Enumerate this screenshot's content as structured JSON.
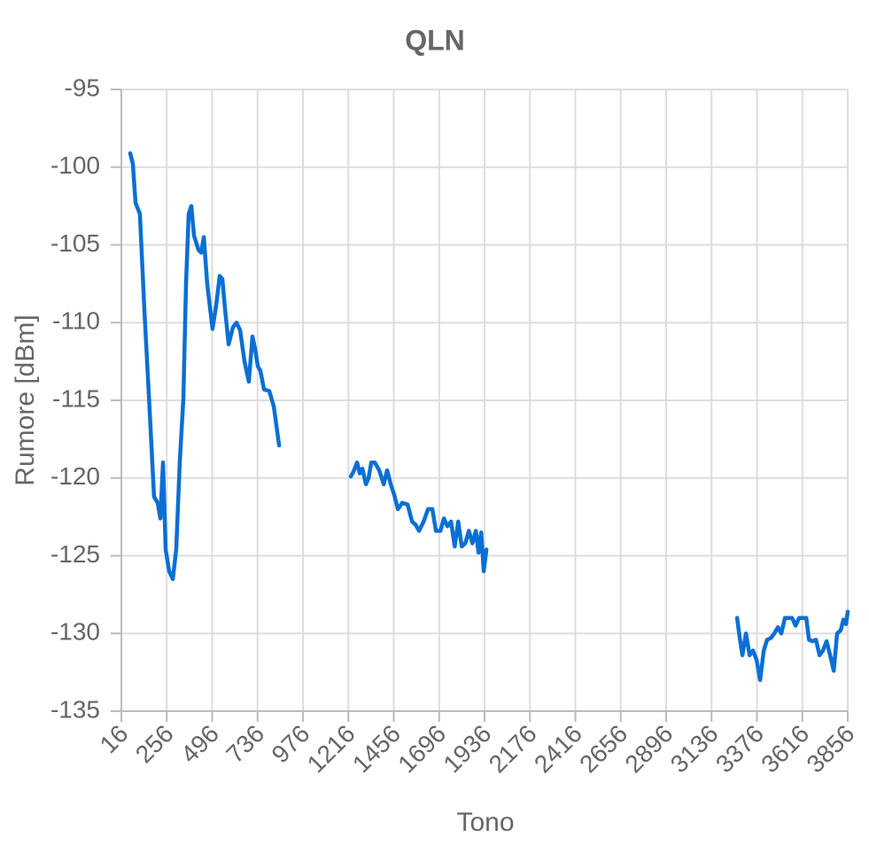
{
  "chart_data": {
    "type": "line",
    "title": "QLN",
    "x_label": "Tono",
    "y_label": "Rumore [dBm]",
    "xlim": [
      16,
      3856
    ],
    "xticks": [
      16,
      256,
      496,
      736,
      976,
      1216,
      1456,
      1696,
      1936,
      2176,
      2416,
      2656,
      2896,
      3136,
      3376,
      3616,
      3856
    ],
    "ylim": [
      -135,
      -95
    ],
    "yticks": [
      -95,
      -100,
      -105,
      -110,
      -115,
      -120,
      -125,
      -130,
      -135
    ],
    "grid": true,
    "color": "#0a6fd4",
    "x": [
      63,
      77,
      91,
      114,
      138,
      161,
      189,
      208,
      222,
      236,
      250,
      269,
      288,
      306,
      325,
      344,
      358,
      372,
      386,
      400,
      423,
      438,
      452,
      470,
      498,
      517,
      536,
      550,
      564,
      583,
      606,
      625,
      644,
      667,
      690,
      709,
      723,
      737,
      751,
      770,
      798,
      822,
      850,
      1040,
      1229,
      1243,
      1262,
      1276,
      1290,
      1309,
      1323,
      1337,
      1356,
      1379,
      1403,
      1421,
      1440,
      1459,
      1478,
      1501,
      1529,
      1553,
      1571,
      1590,
      1614,
      1637,
      1660,
      1679,
      1703,
      1721,
      1740,
      1759,
      1778,
      1797,
      1815,
      1834,
      1853,
      1872,
      1890,
      1904,
      1918,
      1932,
      1946,
      2600,
      3271,
      3285,
      3299,
      3318,
      3337,
      3355,
      3374,
      3393,
      3412,
      3430,
      3449,
      3468,
      3487,
      3505,
      3524,
      3543,
      3562,
      3580,
      3599,
      3618,
      3637,
      3651,
      3669,
      3688,
      3707,
      3725,
      3744,
      3763,
      3782,
      3800,
      3819,
      3833,
      3847,
      3856
    ],
    "values": [
      -99.1,
      -99.8,
      -102.3,
      -103,
      -109.3,
      -114.6,
      -121.2,
      -121.6,
      -122.6,
      -119,
      -124.6,
      -126,
      -126.5,
      -124.6,
      -118.9,
      -114.9,
      -107.5,
      -103,
      -102.5,
      -104.4,
      -105.3,
      -105.5,
      -104.5,
      -107.5,
      -110.4,
      -108.9,
      -107,
      -107.2,
      -109.1,
      -111.4,
      -110.3,
      -110,
      -110.5,
      -112.5,
      -113.8,
      -110.9,
      -111.7,
      -112.8,
      -113.1,
      -114.3,
      -114.4,
      -115.4,
      -117.9,
      null,
      -119.9,
      -119.6,
      -119,
      -119.7,
      -119.4,
      -120.4,
      -120,
      -119,
      -119,
      -119.5,
      -120.4,
      -119.5,
      -120.4,
      -121.1,
      -122,
      -121.6,
      -121.7,
      -122.8,
      -123,
      -123.4,
      -122.8,
      -122,
      -122,
      -123.4,
      -123.4,
      -122.6,
      -123.1,
      -122.8,
      -124.4,
      -122.8,
      -124.4,
      -124.2,
      -123.4,
      -124.2,
      -123.4,
      -124.8,
      -123.5,
      -126,
      -124.6,
      null,
      -129,
      -130.3,
      -131.4,
      -130,
      -131.4,
      -131.1,
      -131.7,
      -133,
      -131.1,
      -130.4,
      -130.3,
      -130,
      -129.6,
      -130,
      -129,
      -129,
      -129,
      -129.5,
      -129,
      -129,
      -129,
      -130.4,
      -130.5,
      -130.4,
      -131.4,
      -131.1,
      -130.5,
      -131.4,
      -132.4,
      -130,
      -129.8,
      -129.1,
      -129.4,
      -128.6
    ]
  }
}
